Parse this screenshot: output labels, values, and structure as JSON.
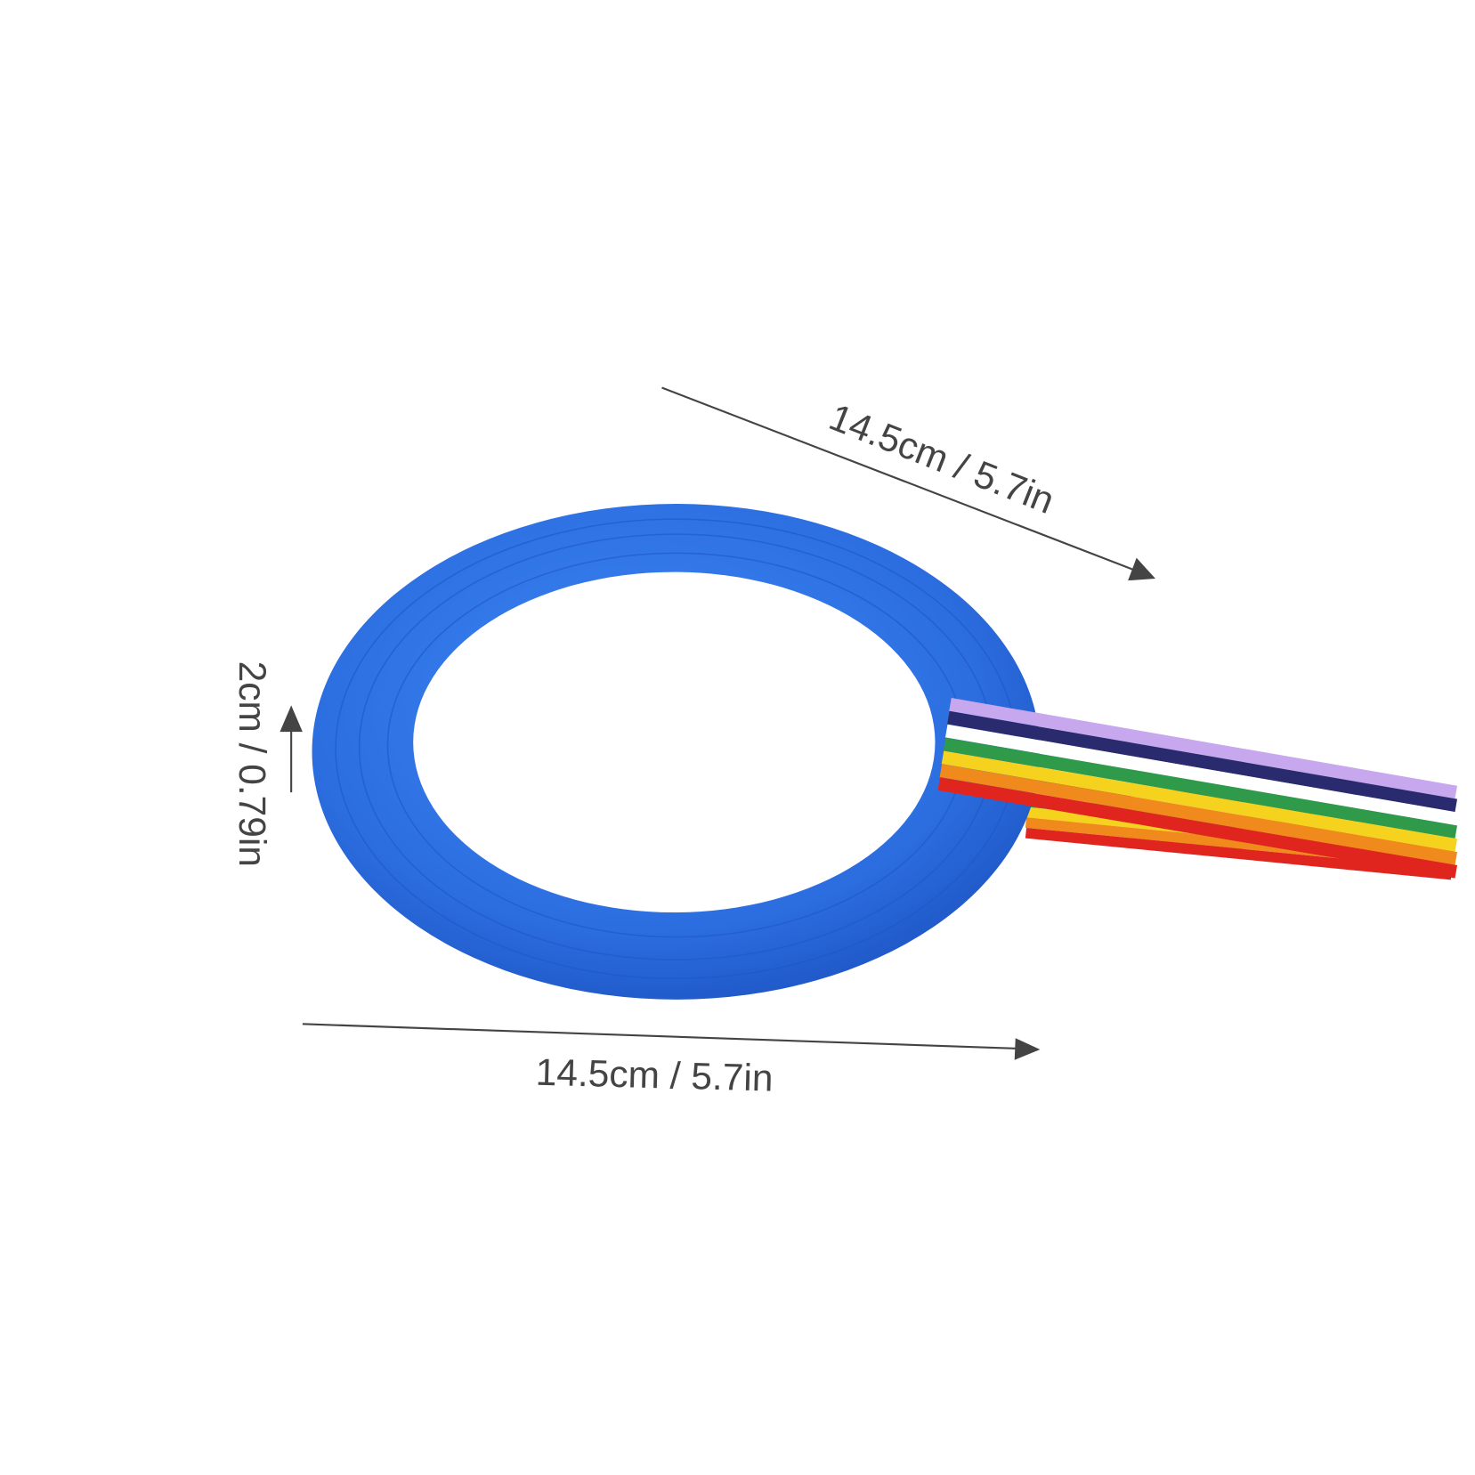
{
  "annotations": {
    "top_length": "14.5cm / 5.7in",
    "thickness": "2cm / 0.79in",
    "bottom_length": "14.5cm / 5.7in"
  }
}
